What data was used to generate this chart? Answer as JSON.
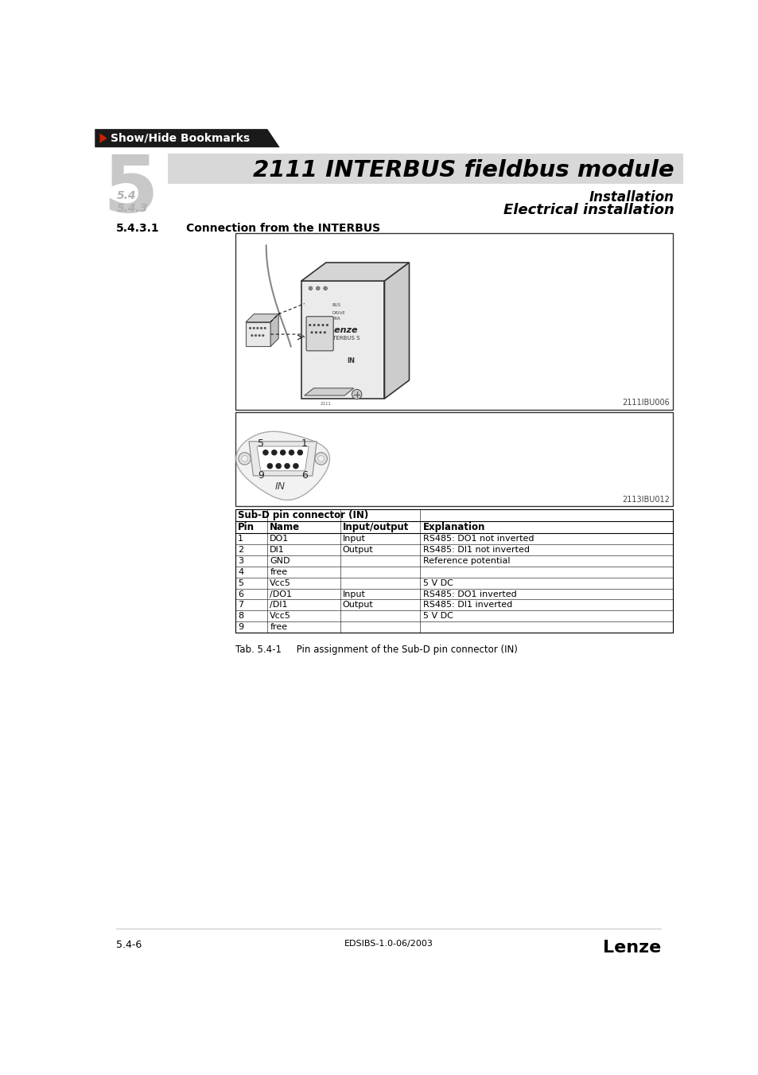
{
  "page_bg": "#ffffff",
  "top_bar_color": "#1a1a1a",
  "top_bar_text": "Show/Hide Bookmarks",
  "top_bar_text_color": "#ffffff",
  "top_bar_arrow_color": "#cc2200",
  "chapter_number": "5",
  "chapter_number_color": "#c8c8c8",
  "header_band_color": "#d8d8d8",
  "main_title": "2111 INTERBUS fieldbus module",
  "sub_label_54": "5.4",
  "sub_label_543": "5.4.3",
  "sub_label_color": "#b0b0b0",
  "sub_title_installation": "Installation",
  "sub_title_electrical": "Electrical installation",
  "section_number": "5.4.3.1",
  "section_title": "Connection from the INTERBUS",
  "diagram1_ref": "2111IBU006",
  "diagram2_ref": "2113IBU012",
  "table_header_title": "Sub-D pin connector (IN)",
  "table_col_headers": [
    "Pin",
    "Name",
    "Input/output",
    "Explanation"
  ],
  "table_rows": [
    [
      "1",
      "DO1",
      "Input",
      "RS485: DO1 not inverted"
    ],
    [
      "2",
      "DI1",
      "Output",
      "RS485: DI1 not inverted"
    ],
    [
      "3",
      "GND",
      "",
      "Reference potential"
    ],
    [
      "4",
      "free",
      "",
      ""
    ],
    [
      "5",
      "Vcc5",
      "",
      "5 V DC"
    ],
    [
      "6",
      "/DO1",
      "Input",
      "RS485: DO1 inverted"
    ],
    [
      "7",
      "/DI1",
      "Output",
      "RS485: DI1 inverted"
    ],
    [
      "8",
      "Vcc5",
      "",
      "5 V DC"
    ],
    [
      "9",
      "free",
      "",
      ""
    ]
  ],
  "table_caption": "Tab. 5.4-1     Pin assignment of the Sub-D pin connector (IN)",
  "footer_left": "5.4-6",
  "footer_center": "EDSIBS-1.0-06/2003",
  "footer_right": "Lenze",
  "text_color": "#000000"
}
